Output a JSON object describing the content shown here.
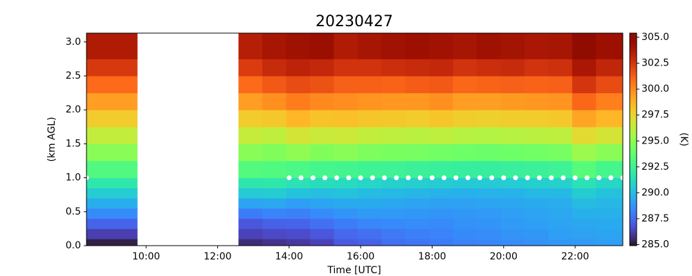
{
  "chart_data": {
    "type": "heatmap",
    "title": "20230427",
    "x_label": "Time [UTC]",
    "y_label": "(km AGL)",
    "colorbar_label": "(K)",
    "colormap": "turbo",
    "xlim": [
      8.333,
      23.333
    ],
    "ylim": [
      0,
      3.13
    ],
    "xticks": [
      {
        "value": 10,
        "label": "10:00"
      },
      {
        "value": 12,
        "label": "12:00"
      },
      {
        "value": 14,
        "label": "14:00"
      },
      {
        "value": 16,
        "label": "16:00"
      },
      {
        "value": 18,
        "label": "18:00"
      },
      {
        "value": 20,
        "label": "20:00"
      },
      {
        "value": 22,
        "label": "22:00"
      }
    ],
    "yticks": [
      {
        "value": 0,
        "label": "0.0"
      },
      0.5,
      {
        "value": 1,
        "label": "1.0"
      },
      1.5,
      {
        "value": 2,
        "label": "2.0"
      },
      2.5,
      {
        "value": 3,
        "label": "3.0"
      }
    ],
    "clim": [
      284.9,
      305.4
    ],
    "cticks": [
      {
        "value": 285,
        "label": "285.0"
      },
      287.5,
      {
        "value": 290,
        "label": "290.0"
      },
      292.5,
      {
        "value": 295,
        "label": "295.0"
      },
      297.5,
      {
        "value": 300,
        "label": "300.0"
      },
      302.5,
      {
        "value": 305,
        "label": "305.0"
      }
    ],
    "x_bins": [
      8.333,
      9.75,
      12.583,
      13.25,
      13.917,
      14.583,
      15.25,
      15.917,
      16.583,
      17.25,
      17.917,
      18.583,
      19.25,
      19.917,
      20.583,
      21.25,
      21.917,
      22.583,
      23.333
    ],
    "y_bins": [
      0,
      0.1,
      0.25,
      0.4,
      0.55,
      0.7,
      0.85,
      1.0,
      1.25,
      1.5,
      1.75,
      2.0,
      2.25,
      2.5,
      2.75,
      3.13
    ],
    "z": [
      [
        285.2,
        null,
        285.6,
        285.8,
        286.0,
        286.3,
        287.0,
        287.2,
        287.6,
        287.8,
        288.0,
        288.2,
        288.3,
        288.5,
        288.6,
        288.8,
        288.9,
        289.0
      ],
      [
        286.2,
        null,
        286.3,
        286.5,
        286.6,
        286.9,
        287.4,
        287.6,
        287.9,
        288.1,
        288.2,
        288.4,
        288.5,
        288.7,
        288.8,
        289.0,
        289.1,
        289.2
      ],
      [
        287.3,
        null,
        286.9,
        287.2,
        287.3,
        287.6,
        288.0,
        288.3,
        288.4,
        288.5,
        288.4,
        288.6,
        288.7,
        288.9,
        289.0,
        289.2,
        289.3,
        289.4
      ],
      [
        288.4,
        null,
        288.0,
        288.2,
        288.1,
        288.4,
        288.7,
        288.9,
        288.9,
        288.8,
        288.7,
        288.8,
        288.9,
        289.0,
        289.2,
        289.3,
        289.6,
        289.6
      ],
      [
        289.5,
        null,
        289.2,
        289.3,
        289.0,
        289.2,
        289.4,
        289.4,
        289.3,
        289.2,
        289.1,
        289.1,
        289.2,
        289.3,
        289.4,
        289.5,
        290.0,
        289.8
      ],
      [
        290.6,
        null,
        290.5,
        290.6,
        290.2,
        290.1,
        290.2,
        290.0,
        289.9,
        289.8,
        289.7,
        289.6,
        289.7,
        289.7,
        289.9,
        289.9,
        290.6,
        290.2
      ],
      [
        291.8,
        null,
        291.7,
        291.8,
        291.5,
        291.3,
        291.2,
        291.0,
        290.8,
        290.7,
        290.6,
        290.5,
        290.5,
        290.6,
        290.7,
        290.8,
        291.5,
        291.0
      ],
      [
        293.2,
        null,
        293.3,
        293.2,
        293.0,
        292.8,
        292.7,
        292.6,
        292.5,
        292.4,
        292.3,
        292.2,
        292.2,
        292.3,
        292.4,
        292.5,
        293.4,
        292.8
      ],
      [
        294.8,
        null,
        294.8,
        294.6,
        295.0,
        294.6,
        294.8,
        294.5,
        294.4,
        294.3,
        294.2,
        294.1,
        294.0,
        294.1,
        294.2,
        294.3,
        295.3,
        294.8
      ],
      [
        296.3,
        null,
        296.4,
        296.2,
        296.8,
        296.5,
        296.6,
        296.3,
        296.2,
        296.1,
        296.2,
        296.0,
        295.9,
        296.0,
        296.1,
        296.2,
        297.3,
        296.8
      ],
      [
        297.9,
        null,
        297.9,
        298.0,
        298.6,
        298.2,
        298.3,
        298.1,
        298.0,
        297.9,
        298.1,
        297.8,
        297.7,
        297.8,
        297.9,
        298.0,
        299.2,
        298.6
      ],
      [
        299.4,
        null,
        299.4,
        299.8,
        300.4,
        300.0,
        299.9,
        299.7,
        299.6,
        299.6,
        299.8,
        299.4,
        299.4,
        299.5,
        299.6,
        299.7,
        301.0,
        300.3
      ],
      [
        300.9,
        null,
        300.9,
        301.4,
        301.8,
        301.6,
        301.2,
        301.2,
        301.1,
        301.3,
        301.4,
        301.0,
        301.1,
        301.2,
        301.1,
        301.2,
        302.5,
        301.8
      ],
      [
        302.4,
        null,
        302.3,
        302.9,
        303.2,
        303.0,
        302.6,
        302.6,
        302.8,
        302.9,
        303.0,
        302.6,
        302.8,
        302.9,
        302.6,
        302.7,
        303.8,
        303.1
      ],
      [
        303.6,
        null,
        303.4,
        303.9,
        304.2,
        304.4,
        303.6,
        303.9,
        304.1,
        304.3,
        304.1,
        303.9,
        304.2,
        304.0,
        303.8,
        303.9,
        305.2,
        304.3
      ]
    ],
    "markers": {
      "color": "#ffffff",
      "x": [
        8.333,
        14.0,
        14.333,
        14.667,
        15.0,
        15.333,
        15.667,
        16.0,
        16.333,
        16.667,
        17.0,
        17.333,
        17.667,
        18.0,
        18.333,
        18.667,
        19.0,
        19.333,
        19.667,
        20.0,
        20.333,
        20.667,
        21.0,
        21.333,
        21.667,
        22.0,
        22.333,
        22.667,
        23.0,
        23.333
      ],
      "y": [
        1,
        1,
        1,
        1,
        1,
        1,
        1,
        1,
        1,
        1,
        1,
        1,
        1,
        1,
        1,
        1,
        1,
        1,
        1,
        1,
        1,
        1,
        1,
        1,
        1,
        1,
        1,
        1,
        1,
        1
      ]
    }
  }
}
